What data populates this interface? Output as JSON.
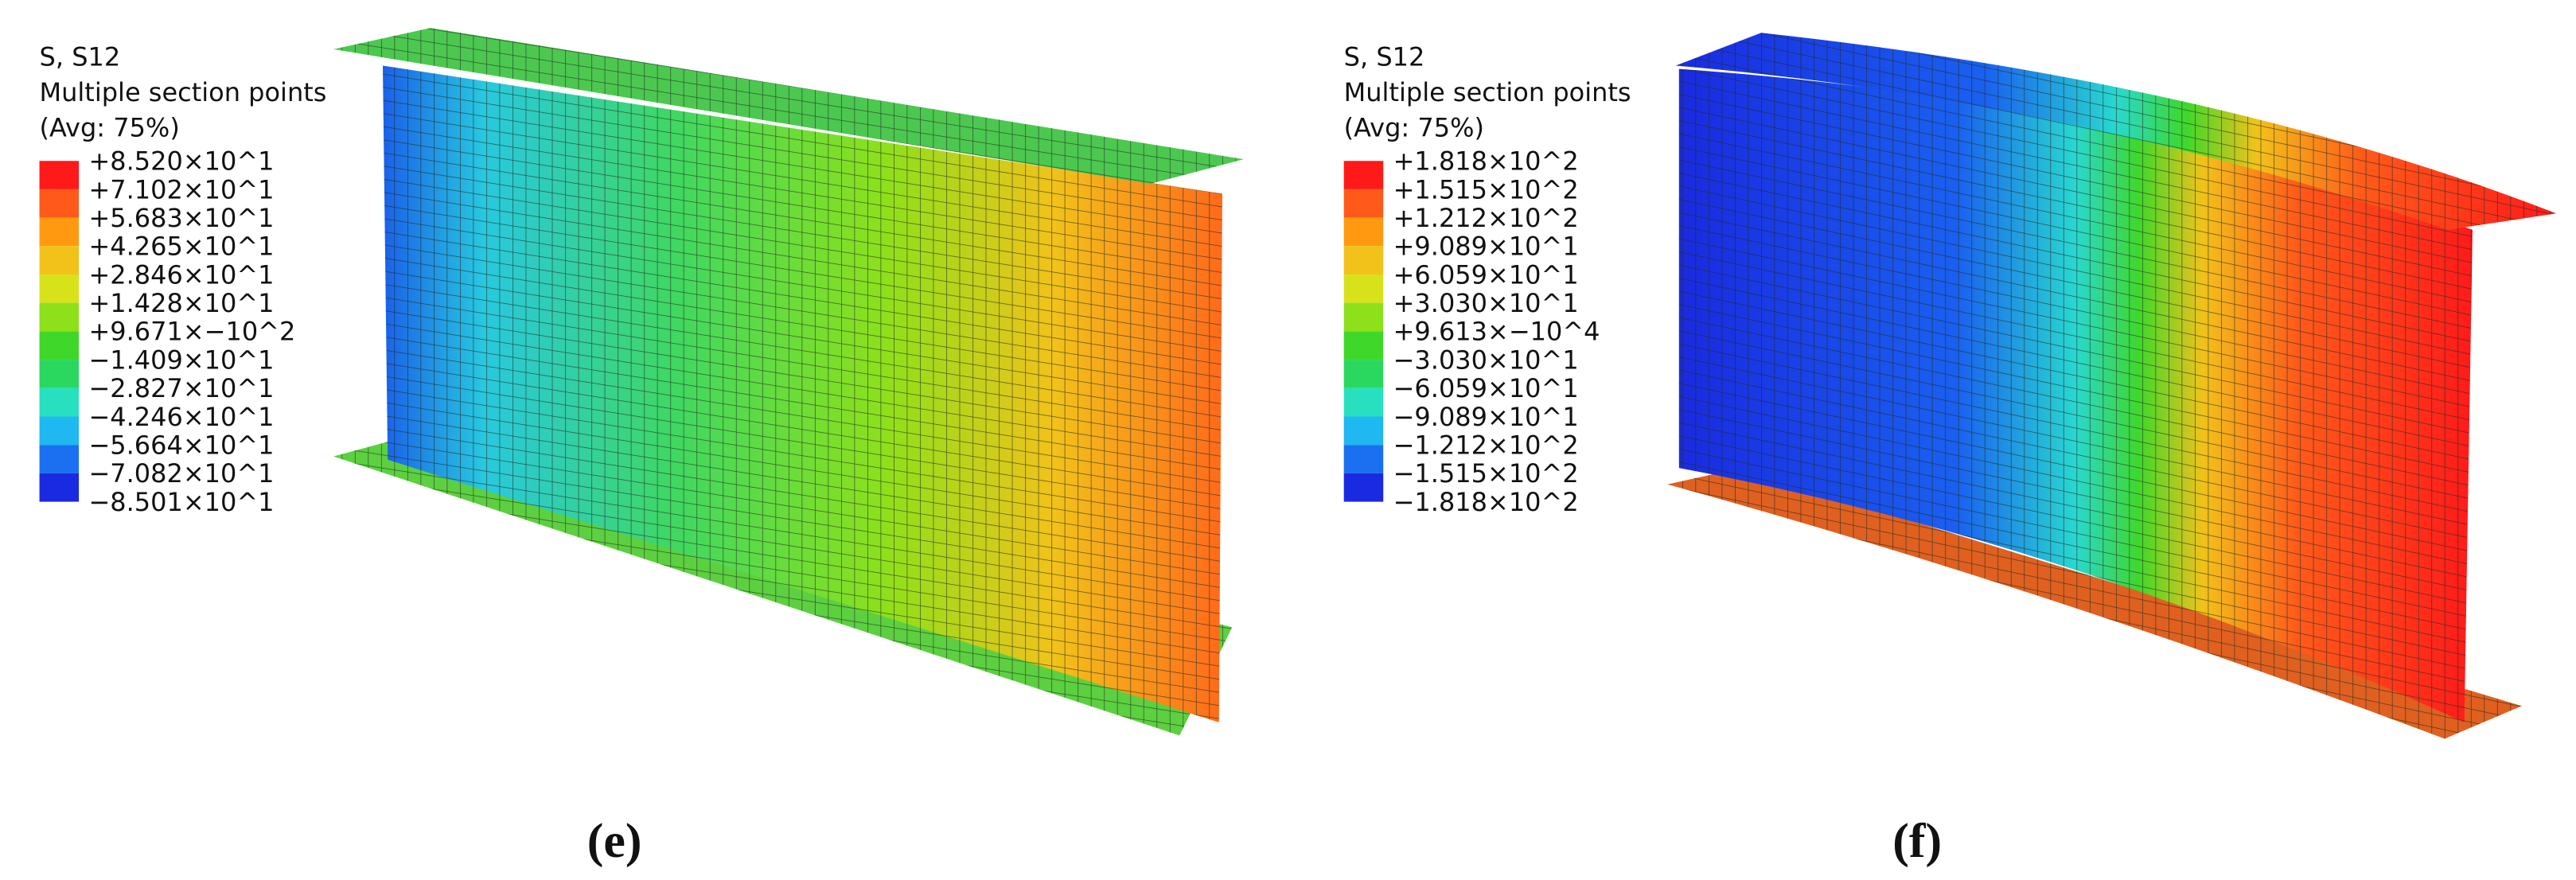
{
  "panels": [
    {
      "legend": {
        "title": [
          "S, S12",
          "Multiple section points",
          "(Avg: 75%)"
        ],
        "labels": [
          "+8.520×10^1",
          "+7.102×10^1",
          "+5.683×10^1",
          "+4.265×10^1",
          "+2.846×10^1",
          "+1.428×10^1",
          "+9.671×−10^2",
          "−1.409×10^1",
          "−2.827×10^1",
          "−4.246×10^1",
          "−5.664×10^1",
          "−7.082×10^1",
          "−8.501×10^1"
        ]
      },
      "caption": "(e)"
    },
    {
      "legend": {
        "title": [
          "S, S12",
          "Multiple section points",
          "(Avg: 75%)"
        ],
        "labels": [
          "+1.818×10^2",
          "+1.515×10^2",
          "+1.212×10^2",
          "+9.089×10^1",
          "+6.059×10^1",
          "+3.030×10^1",
          "+9.613×−10^4",
          "−3.030×10^1",
          "−6.059×10^1",
          "−9.089×10^1",
          "−1.212×10^2",
          "−1.515×10^2",
          "−1.818×10^2"
        ]
      },
      "caption": "(f)"
    }
  ],
  "band_colors": [
    "#ff1a1a",
    "#ff5a1a",
    "#ff9a10",
    "#f2c21a",
    "#d8e21a",
    "#8ee01a",
    "#3fd82a",
    "#2ad860",
    "#28e0c0",
    "#20b8f0",
    "#1a70f0",
    "#1a2ae0"
  ]
}
